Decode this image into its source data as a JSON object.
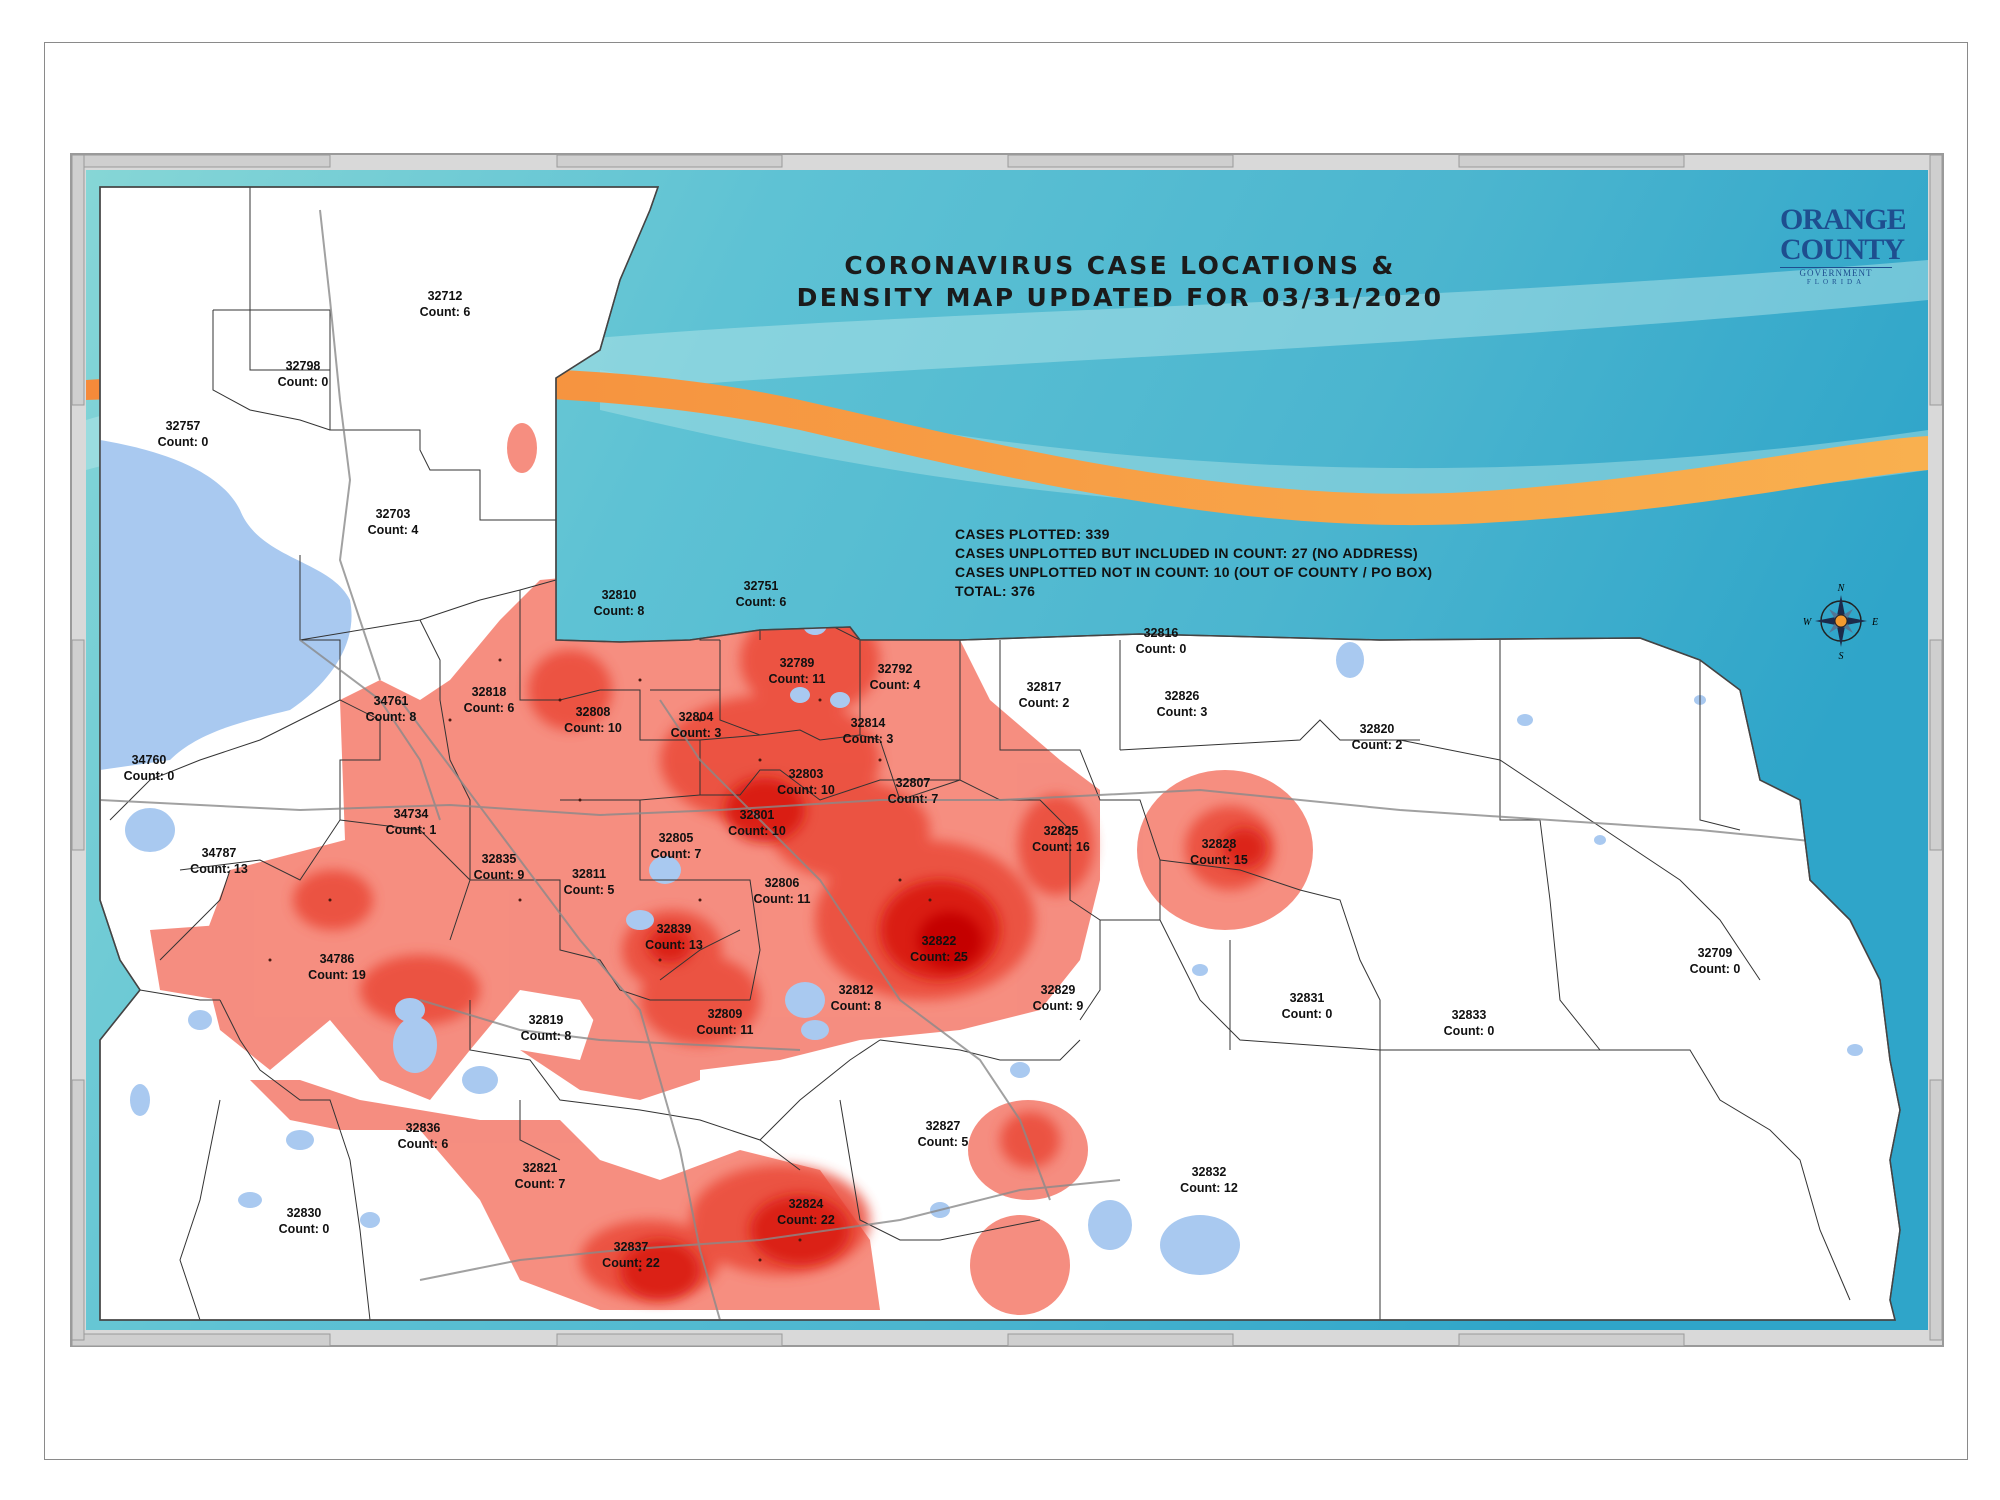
{
  "title": {
    "line1": "CORONAVIRUS CASE LOCATIONS &",
    "line2": "DENSITY MAP UPDATED FOR 03/31/2020"
  },
  "stats": {
    "plotted": "CASES PLOTTED: 339",
    "unplotted_in_count": "CASES UNPLOTTED BUT INCLUDED IN COUNT: 27 (NO ADDRESS)",
    "unplotted_not_in_count": "CASES UNPLOTTED NOT IN COUNT: 10 (OUT OF COUNTY / PO BOX)",
    "total": "TOTAL: 376"
  },
  "logo": {
    "line1": "ORANGE",
    "line2": "COUNTY",
    "line3": "GOVERNMENT",
    "line4": "FLORIDA"
  },
  "compass": {
    "n": "N",
    "s": "S",
    "e": "E",
    "w": "W"
  },
  "colors": {
    "heat_low": "#f26b5b",
    "heat_mid": "#e83a2c",
    "heat_high": "#cc0000",
    "water": "#a9c9f0",
    "sky_teal": "#5bc3d3",
    "stripe_orange": "#f7a04a"
  },
  "zip_areas": [
    {
      "zip": "32712",
      "count": "Count: 6"
    },
    {
      "zip": "32798",
      "count": "Count: 0"
    },
    {
      "zip": "32757",
      "count": "Count: 0"
    },
    {
      "zip": "32703",
      "count": "Count: 4"
    },
    {
      "zip": "32810",
      "count": "Count: 8"
    },
    {
      "zip": "32751",
      "count": "Count: 6"
    },
    {
      "zip": "32789",
      "count": "Count: 11"
    },
    {
      "zip": "32792",
      "count": "Count: 4"
    },
    {
      "zip": "32818",
      "count": "Count: 6"
    },
    {
      "zip": "34761",
      "count": "Count: 8"
    },
    {
      "zip": "32808",
      "count": "Count: 10"
    },
    {
      "zip": "32804",
      "count": "Count: 3"
    },
    {
      "zip": "32814",
      "count": "Count: 3"
    },
    {
      "zip": "32817",
      "count": "Count: 2"
    },
    {
      "zip": "32816",
      "count": "Count: 0"
    },
    {
      "zip": "32826",
      "count": "Count: 3"
    },
    {
      "zip": "32820",
      "count": "Count: 2"
    },
    {
      "zip": "34760",
      "count": "Count: 0"
    },
    {
      "zip": "32803",
      "count": "Count: 10"
    },
    {
      "zip": "32807",
      "count": "Count: 7"
    },
    {
      "zip": "32801",
      "count": "Count: 10"
    },
    {
      "zip": "34734",
      "count": "Count: 1"
    },
    {
      "zip": "32825",
      "count": "Count: 16"
    },
    {
      "zip": "32828",
      "count": "Count: 15"
    },
    {
      "zip": "34787",
      "count": "Count: 13"
    },
    {
      "zip": "32835",
      "count": "Count: 9"
    },
    {
      "zip": "32805",
      "count": "Count: 7"
    },
    {
      "zip": "32811",
      "count": "Count: 5"
    },
    {
      "zip": "32806",
      "count": "Count: 11"
    },
    {
      "zip": "32839",
      "count": "Count: 13"
    },
    {
      "zip": "32822",
      "count": "Count: 25"
    },
    {
      "zip": "34786",
      "count": "Count: 19"
    },
    {
      "zip": "32812",
      "count": "Count: 8"
    },
    {
      "zip": "32829",
      "count": "Count: 9"
    },
    {
      "zip": "32709",
      "count": "Count: 0"
    },
    {
      "zip": "32831",
      "count": "Count: 0"
    },
    {
      "zip": "32833",
      "count": "Count: 0"
    },
    {
      "zip": "32819",
      "count": "Count: 8"
    },
    {
      "zip": "32809",
      "count": "Count: 11"
    },
    {
      "zip": "32836",
      "count": "Count: 6"
    },
    {
      "zip": "32827",
      "count": "Count: 5"
    },
    {
      "zip": "32821",
      "count": "Count: 7"
    },
    {
      "zip": "32832",
      "count": "Count: 12"
    },
    {
      "zip": "32824",
      "count": "Count: 22"
    },
    {
      "zip": "32830",
      "count": "Count: 0"
    },
    {
      "zip": "32837",
      "count": "Count: 22"
    }
  ]
}
